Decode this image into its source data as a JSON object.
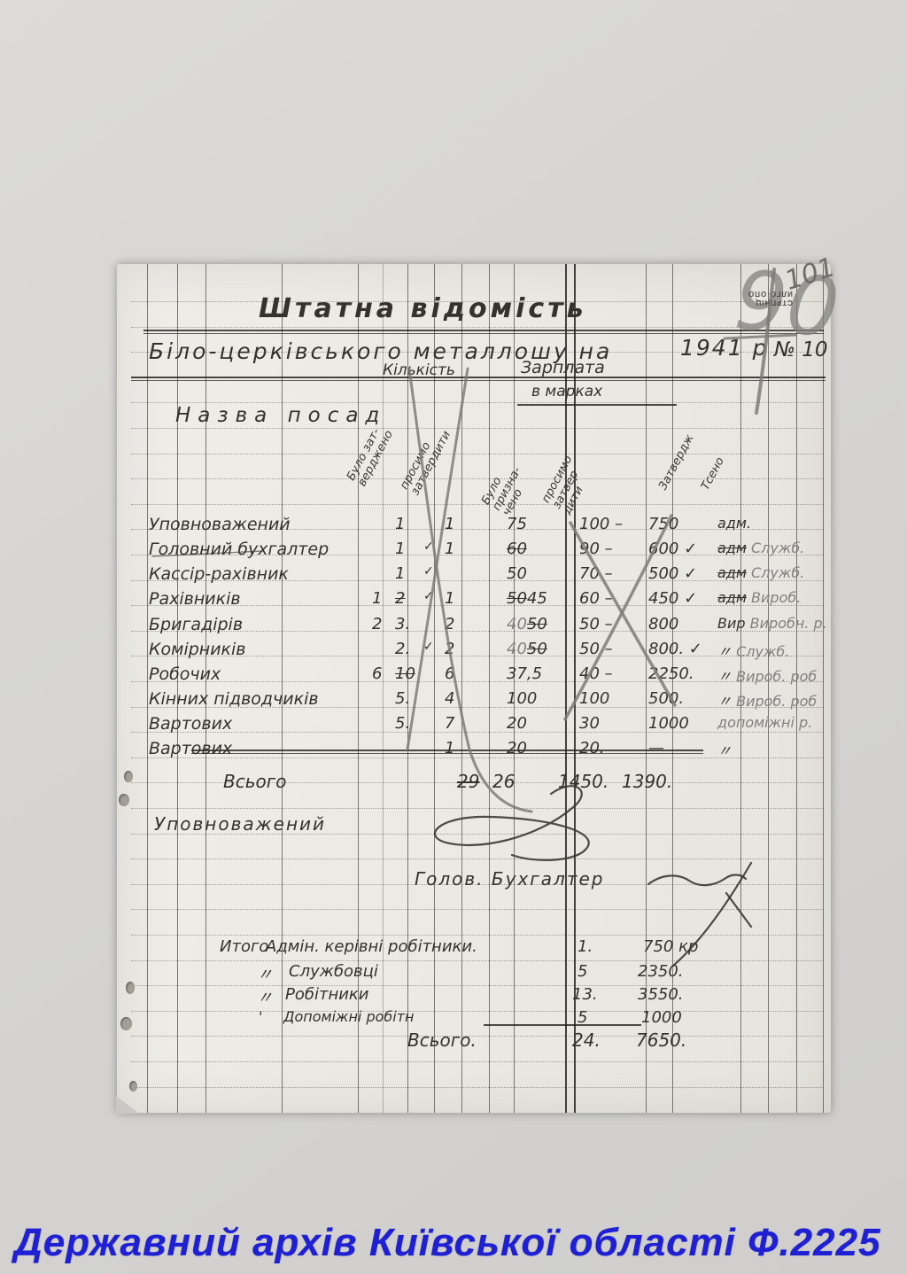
{
  "colors": {
    "watermark_blue": "#1f1fd4"
  },
  "watermark": "Державний архів Київської області Ф.2225",
  "corner": {
    "page_number_large": "90",
    "page_number_small": "101"
  },
  "stamp": {
    "line1": "СТРПНІЦ",
    "line2": "ИЛГО·ОПО"
  },
  "title": "Штатна відомість",
  "subtitle": {
    "text": "Біло-церківського металлошу на",
    "year": "1941 р",
    "number": "№ 10"
  },
  "header": {
    "name_col": "Назва посад",
    "group_qty": "Кількість",
    "group_pay": "Зарплата",
    "group_pay_sub": "в марках",
    "qty_was": "Було зат-\nверджено",
    "qty_ask": "просимо\nзатвердити",
    "pay_was": "Було\nпризна-\nчено",
    "pay_ask": "просимо\nзатвер\nдити",
    "approved": "Затвердж",
    "note": "Тсено"
  },
  "table": {
    "rows": [
      {
        "name": "Уповноважений",
        "qp": "",
        "qs": "",
        "qw": "1",
        "chk": "",
        "qa": "1",
        "swp": "",
        "sws": "",
        "sw": "75",
        "sa": "100 –",
        "ap": "750",
        "ris": "",
        "ri": "адм.",
        "rp": ""
      },
      {
        "name": "Головний бухгалтер",
        "qp": "",
        "qs": "",
        "qw": "1",
        "chk": "✓",
        "qa": "1",
        "swp": "",
        "sws": "60",
        "sw": "",
        "sa": "90 –",
        "ap": "600 ✓",
        "ris": "адм",
        "ri": "",
        "rp": "Служб."
      },
      {
        "name": "Кассір-рахівник",
        "qp": "",
        "qs": "",
        "qw": "1",
        "chk": "✓",
        "qa": "",
        "swp": "",
        "sws": "",
        "sw": "50",
        "sa": "70 –",
        "ap": "500 ✓",
        "ris": "адм",
        "ri": "",
        "rp": "Служб."
      },
      {
        "name": "Рахівників",
        "qp": "1",
        "qs": "2",
        "qw": "",
        "chk": "✓",
        "qa": "1",
        "swp": "",
        "sws": "50",
        "sw": "45",
        "sa": "60 –",
        "ap": "450 ✓",
        "ris": "адм",
        "ri": "",
        "rp": "Вироб."
      },
      {
        "name": "Бригадірів",
        "qp": "2",
        "qs": "",
        "qw": "3.",
        "chk": "",
        "qa": "2",
        "swp": "40",
        "sws": "50",
        "sw": "",
        "sa": "50 –",
        "ap": "800",
        "ris": "",
        "ri": "Вир",
        "rp": "Виробн. р."
      },
      {
        "name": "Комірників",
        "qp": "",
        "qs": "",
        "qw": "2.",
        "chk": "✓",
        "qa": "2",
        "swp": "40",
        "sws": "50",
        "sw": "",
        "sa": "50 –",
        "ap": "800. ✓",
        "ris": "",
        "ri": "〃",
        "rp": "Служб."
      },
      {
        "name": "Робочих",
        "qp": "6",
        "qs": "10",
        "qw": "",
        "chk": "",
        "qa": "6",
        "swp": "",
        "sws": "",
        "sw": "37,5",
        "sa": "40 –",
        "ap": "2250.",
        "ris": "",
        "ri": "〃",
        "rp": "Вироб. роб"
      },
      {
        "name": "Кінних підводчиків",
        "qp": "",
        "qs": "",
        "qw": "5.",
        "chk": "",
        "qa": "4",
        "swp": "",
        "sws": "",
        "sw": "100",
        "sa": "100",
        "ap": "500.",
        "ris": "",
        "ri": "〃",
        "rp": "Вироб. роб"
      },
      {
        "name": "Вартових",
        "qp": "",
        "qs": "",
        "qw": "5.",
        "chk": "",
        "qa": "7",
        "swp": "",
        "sws": "",
        "sw": "20",
        "sa": "30",
        "ap": "1000",
        "ris": "",
        "ri": "",
        "rp": "допоміжні р."
      },
      {
        "name": "Вартових",
        "qp": "",
        "qs": "",
        "qw": "",
        "chk": "",
        "qa": "1",
        "swp": "",
        "sws": "",
        "sw": "20",
        "sa": "20.",
        "ap": "—",
        "ris": "",
        "ri": "〃",
        "rp": ""
      }
    ]
  },
  "totals": {
    "label": "Всього",
    "q_struck": "29",
    "q": "26",
    "pay_was": "1450.",
    "pay_ask": "1390."
  },
  "signatures": {
    "line1": "Уповноважений",
    "line2": "Голов. Бухгалтер"
  },
  "summary": {
    "label": "Итого",
    "rows": [
      {
        "ditto": "",
        "name": "Адмін. керівні робітники.",
        "count": "1.",
        "sum": "750 кр"
      },
      {
        "ditto": "〃",
        "name": "Службовці",
        "count": "5",
        "sum": "2350."
      },
      {
        "ditto": "〃",
        "name": "Робітники",
        "count": "13.",
        "sum": "3550."
      },
      {
        "ditto": "'",
        "name": "Допоміжні робітн",
        "count": "5",
        "sum": "1000"
      }
    ],
    "total_label": "Всього.",
    "total_count": "24.",
    "total_sum": "7650."
  }
}
